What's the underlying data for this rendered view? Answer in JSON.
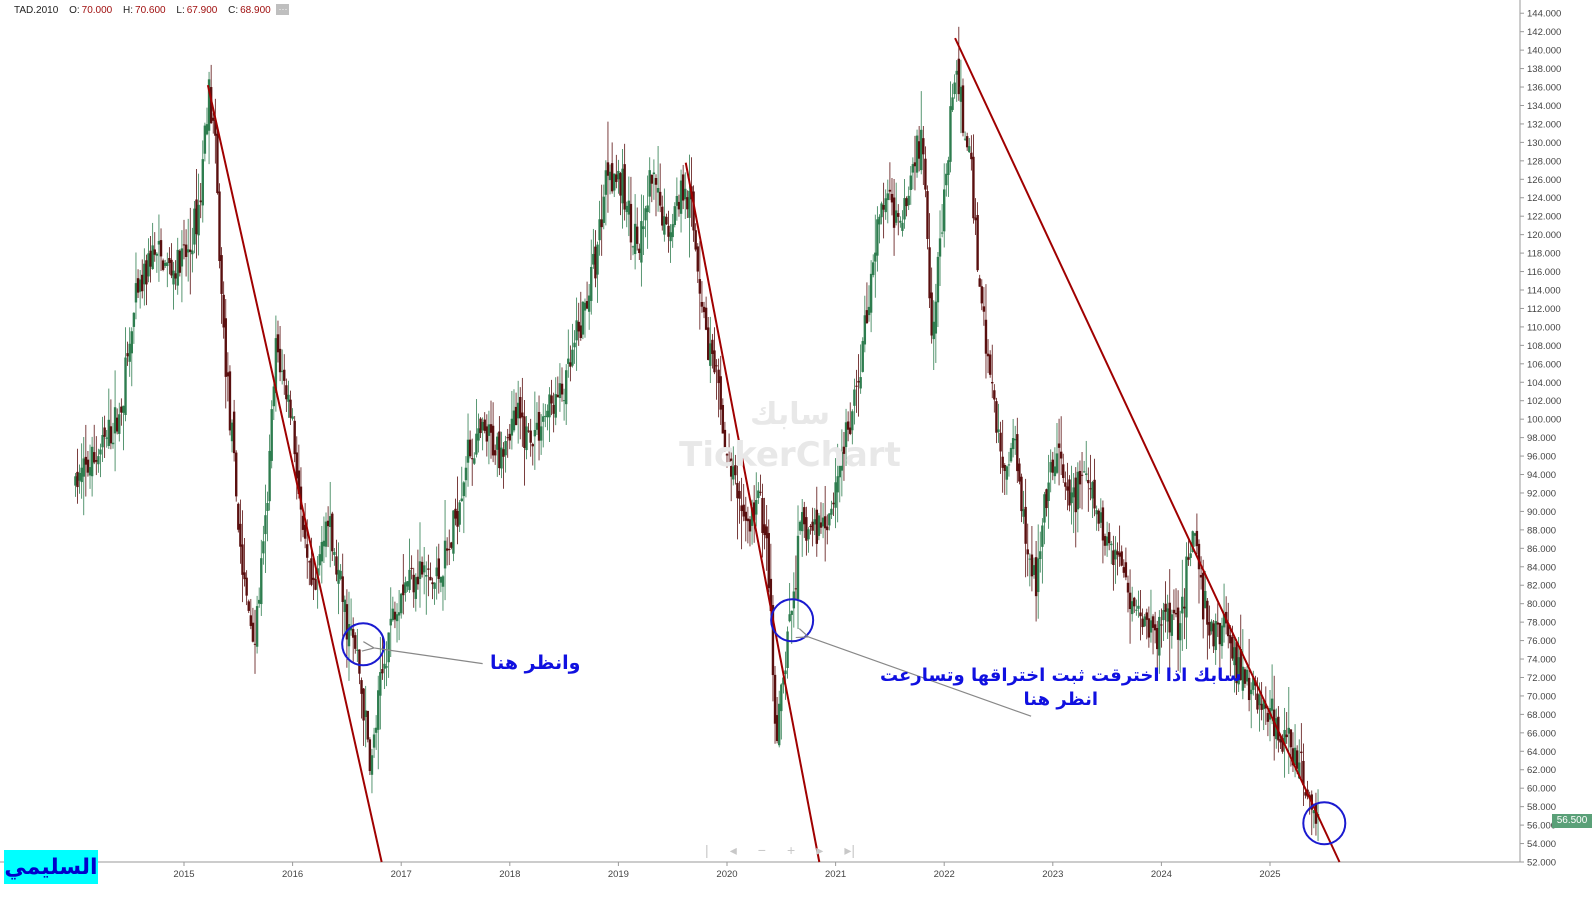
{
  "legend": {
    "symbol": "TAD.2010",
    "open_label": "O:",
    "open_value": "70.000",
    "high_label": "H:",
    "high_value": "70.600",
    "low_label": "L:",
    "low_value": "67.900",
    "close_label": "C:",
    "close_value": "68.900",
    "more_label": "···"
  },
  "watermark": {
    "arabic": "سابك",
    "english": "TickerChart"
  },
  "annotations": {
    "first": "وانظر هنا",
    "second_line1": "سابك اذا اخترقت ثبت اختراقها وتسارعت",
    "second_line2": "انظر هنا"
  },
  "author": "السليمي",
  "nav_controls": {
    "first": "|",
    "prev": "◂",
    "zoom_out": "−",
    "zoom_in": "+",
    "next": "▸",
    "last": "▸|"
  },
  "current_price_label": "56.500",
  "colors": {
    "up": "#2e7d4f",
    "down": "#5a0f0f",
    "trendline": "#a00000",
    "circle": "#1a1ad0",
    "arrow": "#888888",
    "price_badge": "#5aa078"
  },
  "chart_data": {
    "type": "candlestick",
    "symbol": "TAD.2010",
    "x_range": [
      2014.0,
      2025.9
    ],
    "ylim": [
      52,
      145
    ],
    "x_ticks": [
      "2015",
      "2016",
      "2017",
      "2018",
      "2019",
      "2020",
      "2021",
      "2022",
      "2023",
      "2024",
      "2025"
    ],
    "x_tick_values": [
      2015,
      2016,
      2017,
      2018,
      2019,
      2020,
      2021,
      2022,
      2023,
      2024,
      2025
    ],
    "y_ticks": [
      "52.000",
      "54.000",
      "56.000",
      "58.000",
      "60.000",
      "62.000",
      "64.000",
      "66.000",
      "68.000",
      "70.000",
      "72.000",
      "74.000",
      "76.000",
      "78.000",
      "80.000",
      "82.000",
      "84.000",
      "86.000",
      "88.000",
      "90.000",
      "92.000",
      "94.000",
      "96.000",
      "98.000",
      "100.000",
      "102.000",
      "104.000",
      "106.000",
      "108.000",
      "110.000",
      "112.000",
      "114.000",
      "116.000",
      "118.000",
      "120.000",
      "122.000",
      "124.000",
      "126.000",
      "128.000",
      "130.000",
      "132.000",
      "134.000",
      "136.000",
      "138.000",
      "140.000",
      "142.000",
      "144.000"
    ],
    "price_path": [
      [
        2014.0,
        93
      ],
      [
        2014.2,
        96
      ],
      [
        2014.4,
        100
      ],
      [
        2014.55,
        112
      ],
      [
        2014.7,
        118
      ],
      [
        2014.9,
        116
      ],
      [
        2015.05,
        118
      ],
      [
        2015.15,
        124
      ],
      [
        2015.22,
        136
      ],
      [
        2015.28,
        131
      ],
      [
        2015.35,
        112
      ],
      [
        2015.45,
        96
      ],
      [
        2015.55,
        82
      ],
      [
        2015.65,
        76
      ],
      [
        2015.75,
        88
      ],
      [
        2015.85,
        108
      ],
      [
        2015.92,
        104
      ],
      [
        2016.0,
        100
      ],
      [
        2016.1,
        86
      ],
      [
        2016.2,
        80
      ],
      [
        2016.3,
        90
      ],
      [
        2016.4,
        84
      ],
      [
        2016.5,
        78
      ],
      [
        2016.6,
        74
      ],
      [
        2016.72,
        62
      ],
      [
        2016.8,
        70
      ],
      [
        2016.9,
        78
      ],
      [
        2017.0,
        82
      ],
      [
        2017.15,
        84
      ],
      [
        2017.3,
        82
      ],
      [
        2017.45,
        86
      ],
      [
        2017.6,
        96
      ],
      [
        2017.75,
        98
      ],
      [
        2017.9,
        97
      ],
      [
        2018.05,
        100
      ],
      [
        2018.2,
        98
      ],
      [
        2018.35,
        101
      ],
      [
        2018.5,
        103
      ],
      [
        2018.65,
        110
      ],
      [
        2018.8,
        118
      ],
      [
        2018.9,
        128
      ],
      [
        2019.0,
        126
      ],
      [
        2019.1,
        122
      ],
      [
        2019.2,
        118
      ],
      [
        2019.3,
        126
      ],
      [
        2019.45,
        120
      ],
      [
        2019.55,
        124
      ],
      [
        2019.62,
        126
      ],
      [
        2019.7,
        120
      ],
      [
        2019.8,
        110
      ],
      [
        2019.9,
        104
      ],
      [
        2020.0,
        96
      ],
      [
        2020.1,
        92
      ],
      [
        2020.2,
        88
      ],
      [
        2020.3,
        92
      ],
      [
        2020.38,
        84
      ],
      [
        2020.45,
        64
      ],
      [
        2020.52,
        72
      ],
      [
        2020.6,
        80
      ],
      [
        2020.68,
        88
      ],
      [
        2020.8,
        88
      ],
      [
        2020.95,
        90
      ],
      [
        2021.05,
        96
      ],
      [
        2021.15,
        100
      ],
      [
        2021.25,
        108
      ],
      [
        2021.35,
        118
      ],
      [
        2021.45,
        124
      ],
      [
        2021.55,
        122
      ],
      [
        2021.65,
        124
      ],
      [
        2021.75,
        130
      ],
      [
        2021.82,
        128
      ],
      [
        2021.88,
        110
      ],
      [
        2021.95,
        118
      ],
      [
        2022.02,
        126
      ],
      [
        2022.1,
        138
      ],
      [
        2022.18,
        132
      ],
      [
        2022.25,
        126
      ],
      [
        2022.35,
        112
      ],
      [
        2022.45,
        102
      ],
      [
        2022.55,
        94
      ],
      [
        2022.65,
        98
      ],
      [
        2022.75,
        88
      ],
      [
        2022.85,
        82
      ],
      [
        2022.95,
        92
      ],
      [
        2023.05,
        96
      ],
      [
        2023.15,
        90
      ],
      [
        2023.25,
        94
      ],
      [
        2023.35,
        92
      ],
      [
        2023.45,
        88
      ],
      [
        2023.55,
        86
      ],
      [
        2023.65,
        84
      ],
      [
        2023.75,
        80
      ],
      [
        2023.85,
        78
      ],
      [
        2023.95,
        76
      ],
      [
        2024.05,
        80
      ],
      [
        2024.15,
        78
      ],
      [
        2024.25,
        84
      ],
      [
        2024.3,
        88
      ],
      [
        2024.38,
        80
      ],
      [
        2024.48,
        76
      ],
      [
        2024.58,
        78
      ],
      [
        2024.68,
        74
      ],
      [
        2024.78,
        72
      ],
      [
        2024.88,
        70
      ],
      [
        2024.98,
        68
      ],
      [
        2025.08,
        66
      ],
      [
        2025.18,
        64
      ],
      [
        2025.28,
        62
      ],
      [
        2025.38,
        58
      ],
      [
        2025.45,
        56.5
      ]
    ],
    "trendlines": [
      {
        "from": [
          2015.22,
          136.2
        ],
        "to": [
          2016.82,
          52
        ]
      },
      {
        "from": [
          2019.62,
          127.8
        ],
        "to": [
          2020.85,
          52
        ]
      },
      {
        "from": [
          2022.1,
          141.3
        ],
        "to": [
          2025.64,
          52
        ]
      }
    ],
    "circles": [
      {
        "x": 2016.65,
        "y": 75.6
      },
      {
        "x": 2020.6,
        "y": 78.2
      },
      {
        "x": 2025.5,
        "y": 56.2
      }
    ],
    "arrows": [
      {
        "from": [
          2017.75,
          73.5
        ],
        "to": [
          2016.75,
          75.2
        ]
      },
      {
        "from": [
          2022.8,
          67.8
        ],
        "to": [
          2020.75,
          76.4
        ]
      }
    ]
  }
}
